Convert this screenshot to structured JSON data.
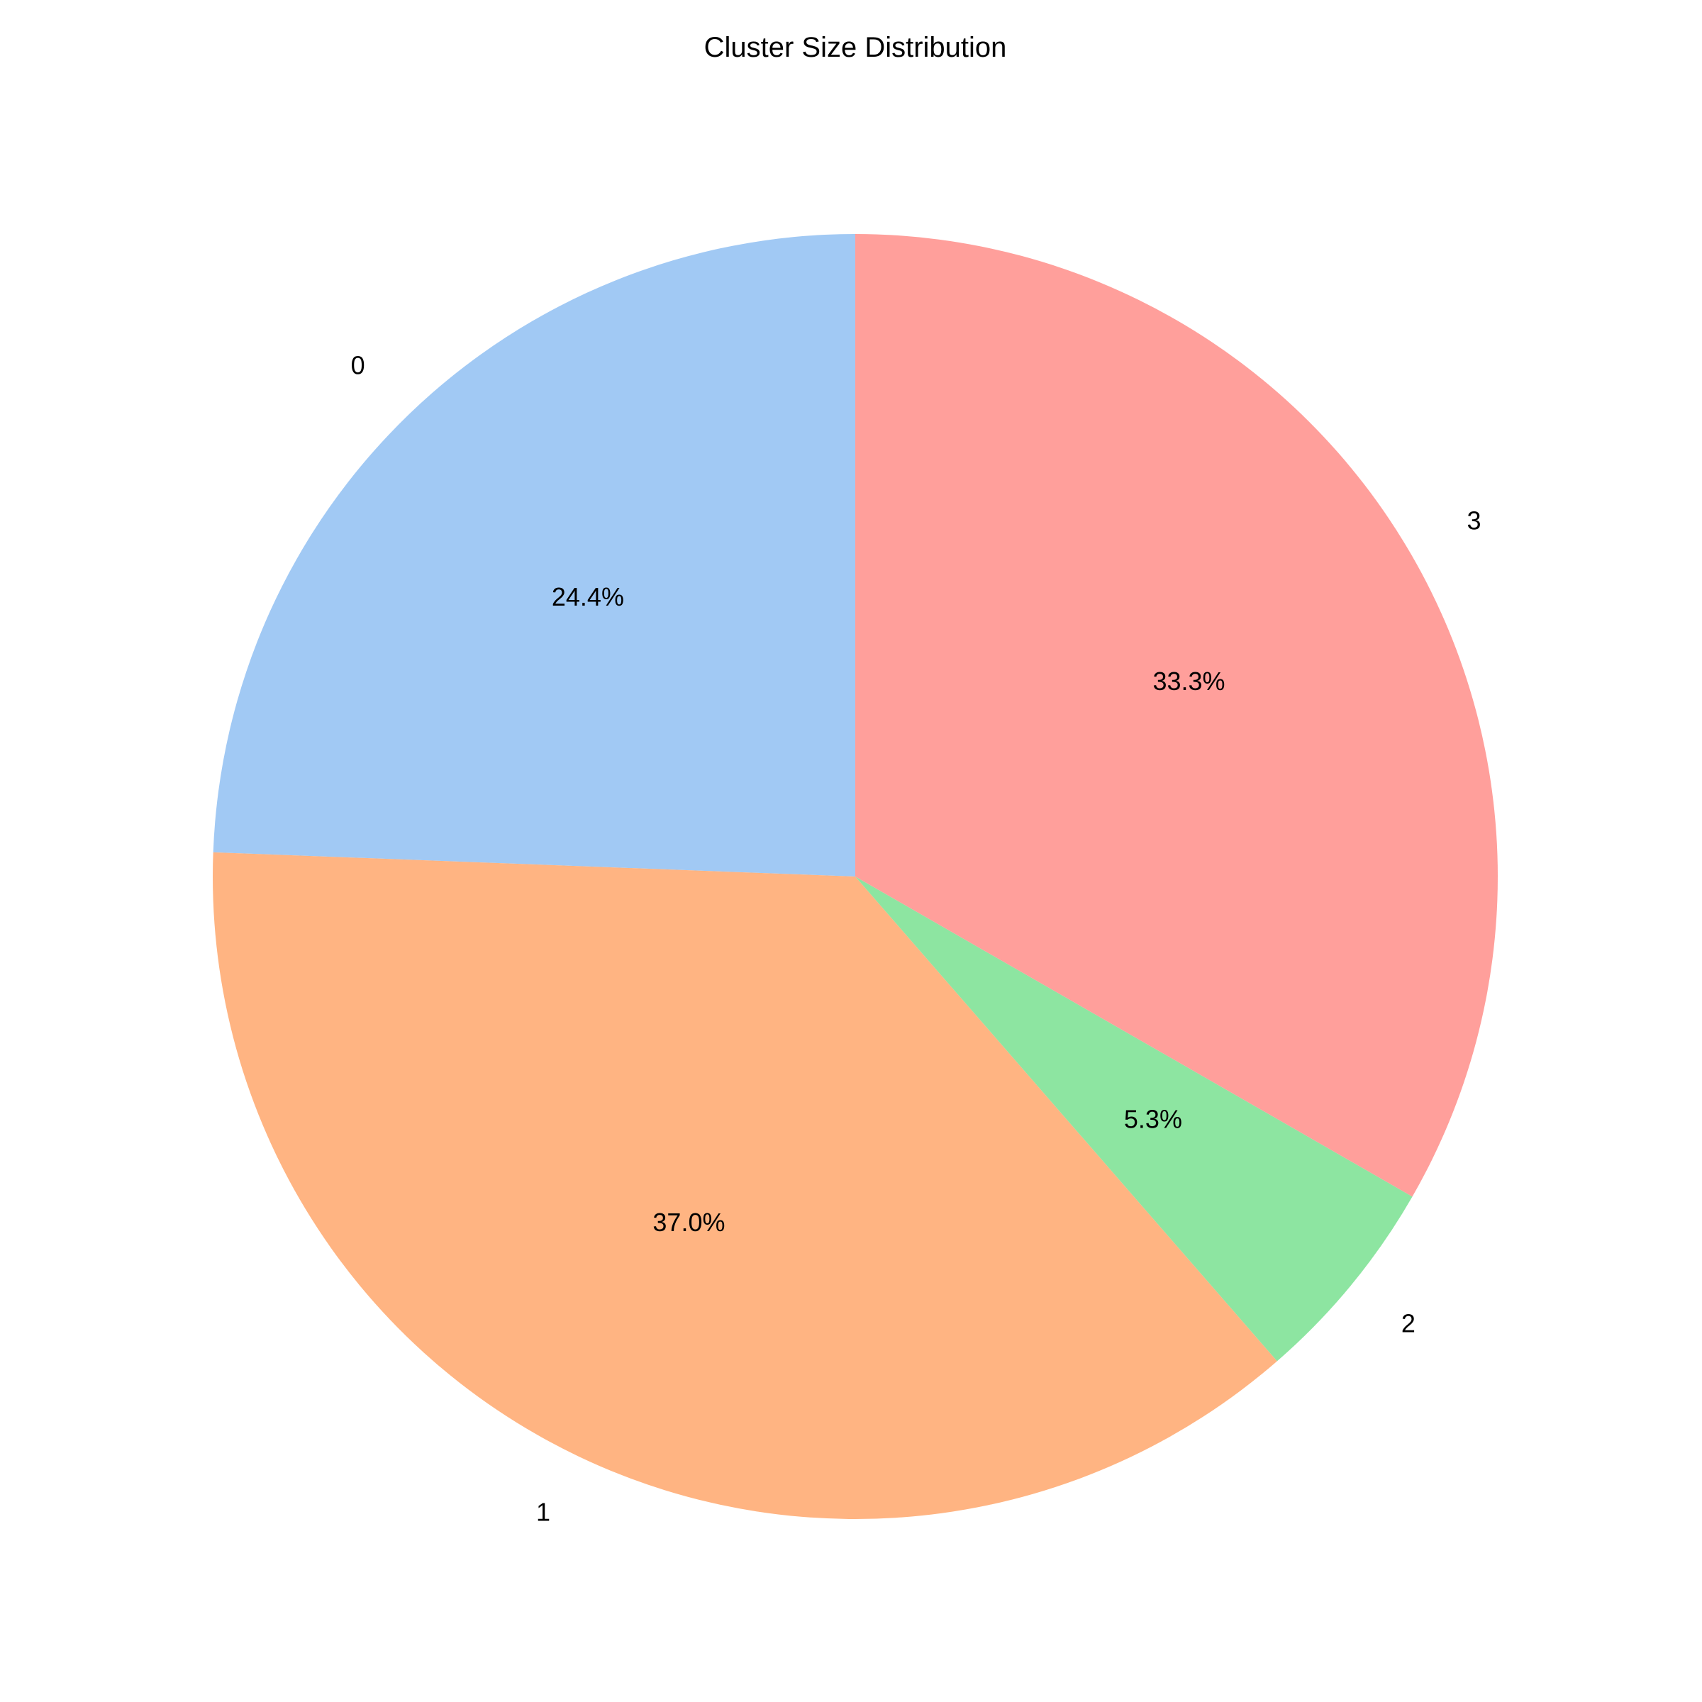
{
  "chart_data": {
    "type": "pie",
    "title": "Cluster Size Distribution",
    "categories": [
      "0",
      "1",
      "2",
      "3"
    ],
    "values": [
      24.4,
      37.0,
      5.3,
      33.3
    ],
    "value_labels": [
      "24.4%",
      "37.0%",
      "5.3%",
      "33.3%"
    ],
    "colors": [
      "#a1c9f4",
      "#ffb482",
      "#8de5a1",
      "#ff9f9b"
    ],
    "start_angle": 90,
    "direction": "counterclockwise",
    "legend": "none"
  }
}
